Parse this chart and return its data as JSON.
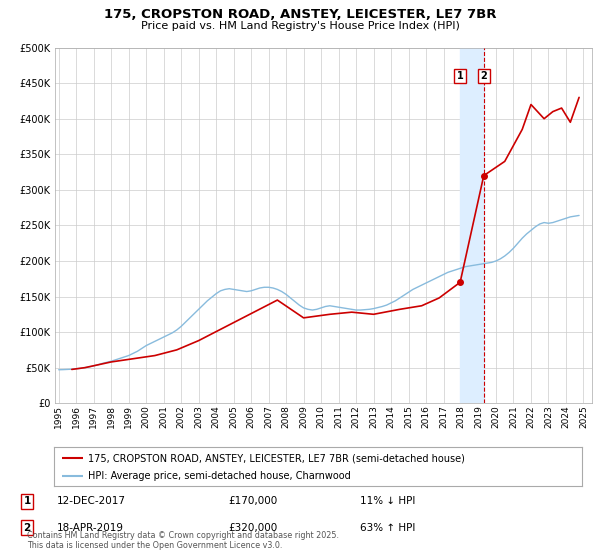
{
  "title": "175, CROPSTON ROAD, ANSTEY, LEICESTER, LE7 7BR",
  "subtitle": "Price paid vs. HM Land Registry's House Price Index (HPI)",
  "legend_label1": "175, CROPSTON ROAD, ANSTEY, LEICESTER, LE7 7BR (semi-detached house)",
  "legend_label2": "HPI: Average price, semi-detached house, Charnwood",
  "color_price": "#cc0000",
  "color_hpi": "#88bbdd",
  "color_shade": "#ddeeff",
  "color_grid": "#cccccc",
  "marker1_date": 2017.95,
  "marker1_price": 170000,
  "marker2_date": 2019.3,
  "marker2_price": 320000,
  "footer": "Contains HM Land Registry data © Crown copyright and database right 2025.\nThis data is licensed under the Open Government Licence v3.0.",
  "ylim": [
    0,
    500000
  ],
  "xlim_start": 1994.8,
  "xlim_end": 2025.5,
  "shade_x1": 2017.95,
  "shade_x2": 2019.3,
  "hpi_years": [
    1995.0,
    1995.25,
    1995.5,
    1995.75,
    1996.0,
    1996.25,
    1996.5,
    1996.75,
    1997.0,
    1997.25,
    1997.5,
    1997.75,
    1998.0,
    1998.25,
    1998.5,
    1998.75,
    1999.0,
    1999.25,
    1999.5,
    1999.75,
    2000.0,
    2000.25,
    2000.5,
    2000.75,
    2001.0,
    2001.25,
    2001.5,
    2001.75,
    2002.0,
    2002.25,
    2002.5,
    2002.75,
    2003.0,
    2003.25,
    2003.5,
    2003.75,
    2004.0,
    2004.25,
    2004.5,
    2004.75,
    2005.0,
    2005.25,
    2005.5,
    2005.75,
    2006.0,
    2006.25,
    2006.5,
    2006.75,
    2007.0,
    2007.25,
    2007.5,
    2007.75,
    2008.0,
    2008.25,
    2008.5,
    2008.75,
    2009.0,
    2009.25,
    2009.5,
    2009.75,
    2010.0,
    2010.25,
    2010.5,
    2010.75,
    2011.0,
    2011.25,
    2011.5,
    2011.75,
    2012.0,
    2012.25,
    2012.5,
    2012.75,
    2013.0,
    2013.25,
    2013.5,
    2013.75,
    2014.0,
    2014.25,
    2014.5,
    2014.75,
    2015.0,
    2015.25,
    2015.5,
    2015.75,
    2016.0,
    2016.25,
    2016.5,
    2016.75,
    2017.0,
    2017.25,
    2017.5,
    2017.75,
    2018.0,
    2018.25,
    2018.5,
    2018.75,
    2019.0,
    2019.25,
    2019.5,
    2019.75,
    2020.0,
    2020.25,
    2020.5,
    2020.75,
    2021.0,
    2021.25,
    2021.5,
    2021.75,
    2022.0,
    2022.25,
    2022.5,
    2022.75,
    2023.0,
    2023.25,
    2023.5,
    2023.75,
    2024.0,
    2024.25,
    2024.5,
    2024.75
  ],
  "hpi_values": [
    47000,
    47200,
    47500,
    47800,
    48500,
    49000,
    50000,
    51000,
    52500,
    54000,
    56000,
    57500,
    59000,
    61000,
    63000,
    65000,
    67000,
    70000,
    73000,
    77000,
    81000,
    84000,
    87000,
    90000,
    93000,
    96000,
    99000,
    103000,
    108000,
    114000,
    120000,
    126000,
    132000,
    138000,
    144000,
    149000,
    154000,
    158000,
    160000,
    161000,
    160000,
    159000,
    158000,
    157000,
    158000,
    160000,
    162000,
    163000,
    163000,
    162000,
    160000,
    157000,
    153000,
    148000,
    143000,
    138000,
    134000,
    132000,
    131000,
    132000,
    134000,
    136000,
    137000,
    136000,
    135000,
    134000,
    133000,
    132000,
    131000,
    131000,
    131500,
    132000,
    133000,
    134500,
    136000,
    138000,
    141000,
    144000,
    148000,
    152000,
    156000,
    160000,
    163000,
    166000,
    169000,
    172000,
    175000,
    178000,
    181000,
    184000,
    186000,
    188000,
    190000,
    192000,
    193000,
    194000,
    195000,
    196000,
    197000,
    198000,
    200000,
    203000,
    207000,
    212000,
    218000,
    225000,
    232000,
    238000,
    243000,
    248000,
    252000,
    254000,
    253000,
    254000,
    256000,
    258000,
    260000,
    262000,
    263000,
    264000
  ],
  "price_years": [
    1995.75,
    1996.5,
    1998.0,
    2000.5,
    2001.75,
    2003.0,
    2004.5,
    2006.0,
    2007.5,
    2009.0,
    2010.5,
    2011.75,
    2013.0,
    2014.5,
    2015.75,
    2016.75,
    2017.95,
    2019.3,
    2020.5,
    2021.5,
    2022.0,
    2022.75,
    2023.25,
    2023.75,
    2024.25,
    2024.75
  ],
  "price_values": [
    47500,
    50000,
    58000,
    67000,
    75000,
    88000,
    107000,
    126000,
    145000,
    120000,
    125000,
    128000,
    125000,
    132000,
    137000,
    148000,
    170000,
    320000,
    340000,
    385000,
    420000,
    400000,
    410000,
    415000,
    395000,
    430000
  ]
}
